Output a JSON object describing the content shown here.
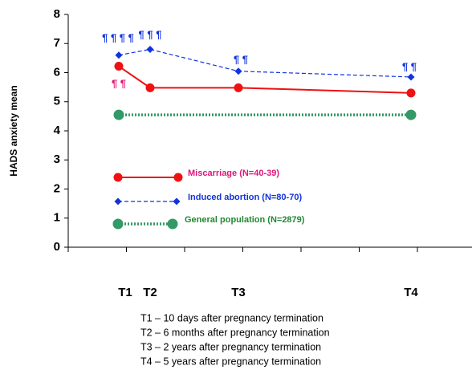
{
  "chart_data": {
    "type": "line",
    "ylabel": "HADS anxiety mean",
    "categories": [
      "T1",
      "T2",
      "T3",
      "T4"
    ],
    "ylim": [
      0,
      8
    ],
    "yticks": [
      0,
      1,
      2,
      3,
      4,
      5,
      6,
      7,
      8
    ],
    "series": [
      {
        "name": "Miscarriage (N=40-39)",
        "color": "#ee1111",
        "label_color": "#e0157a",
        "marker": "circle",
        "dash": "solid",
        "x": [
          "T1",
          "T2",
          "T3",
          "T4"
        ],
        "values": [
          6.22,
          5.48,
          5.48,
          5.3
        ]
      },
      {
        "name": "Induced abortion (N=80-70)",
        "color": "#1133dd",
        "label_color": "#1133dd",
        "marker": "diamond",
        "dash": "dashed",
        "x": [
          "T1",
          "T2",
          "T3",
          "T4"
        ],
        "values": [
          6.6,
          6.8,
          6.05,
          5.85
        ]
      },
      {
        "name": "General population (N=2879)",
        "color": "#339966",
        "label_color": "#228833",
        "marker": "circle",
        "dash": "dotted",
        "x": [
          "T1",
          "T4"
        ],
        "values": [
          4.55,
          4.55
        ]
      }
    ],
    "annotations": [
      {
        "text": "¶ ¶ ¶ ¶",
        "color": "#1133dd"
      },
      {
        "text": "¶ ¶ ¶",
        "color": "#1133dd"
      },
      {
        "text": "¶ ¶",
        "color": "#1133dd"
      },
      {
        "text": "¶ ¶",
        "color": "#1133dd"
      },
      {
        "text": "¶ ¶",
        "color": "#e0157a"
      }
    ],
    "footnotes": [
      "T1 – 10 days after pregnancy termination",
      "T2 – 6 months after pregnancy termination",
      "T3 – 2 years after pregnancy termination",
      "T4 – 5 years after pregnancy termination"
    ]
  }
}
